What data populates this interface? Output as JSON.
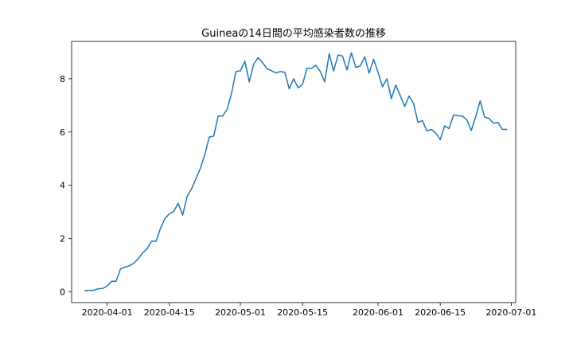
{
  "chart_data": {
    "type": "line",
    "title": "Guineaの14日間の平均感染者数の推移",
    "xlabel": "",
    "ylabel": "",
    "grid": false,
    "legend": "none",
    "line_color": "#1f77b4",
    "xlim": [
      "2020-03-24",
      "2020-07-02"
    ],
    "ylim": [
      -0.4,
      9.4
    ],
    "x_ticks": [
      "2020-04-01",
      "2020-04-15",
      "2020-05-01",
      "2020-05-15",
      "2020-06-01",
      "2020-06-15",
      "2020-07-01"
    ],
    "y_ticks": [
      0,
      2,
      4,
      6,
      8
    ],
    "series": [
      {
        "x": [
          "2020-03-27",
          "2020-03-28",
          "2020-03-29",
          "2020-03-30",
          "2020-03-31",
          "2020-04-01",
          "2020-04-02",
          "2020-04-03",
          "2020-04-04",
          "2020-04-05",
          "2020-04-06",
          "2020-04-07",
          "2020-04-08",
          "2020-04-09",
          "2020-04-10",
          "2020-04-11",
          "2020-04-12",
          "2020-04-13",
          "2020-04-14",
          "2020-04-15",
          "2020-04-16",
          "2020-04-17",
          "2020-04-18",
          "2020-04-19",
          "2020-04-20",
          "2020-04-21",
          "2020-04-22",
          "2020-04-23",
          "2020-04-24",
          "2020-04-25",
          "2020-04-26",
          "2020-04-27",
          "2020-04-28",
          "2020-04-29",
          "2020-04-30",
          "2020-05-01",
          "2020-05-02",
          "2020-05-03",
          "2020-05-04",
          "2020-05-05",
          "2020-05-06",
          "2020-05-07",
          "2020-05-08",
          "2020-05-09",
          "2020-05-10",
          "2020-05-11",
          "2020-05-12",
          "2020-05-13",
          "2020-05-14",
          "2020-05-15",
          "2020-05-16",
          "2020-05-17",
          "2020-05-18",
          "2020-05-19",
          "2020-05-20",
          "2020-05-21",
          "2020-05-22",
          "2020-05-23",
          "2020-05-24",
          "2020-05-25",
          "2020-05-26",
          "2020-05-27",
          "2020-05-28",
          "2020-05-29",
          "2020-05-30",
          "2020-05-31",
          "2020-06-01",
          "2020-06-02",
          "2020-06-03",
          "2020-06-04",
          "2020-06-05",
          "2020-06-06",
          "2020-06-07",
          "2020-06-08",
          "2020-06-09",
          "2020-06-10",
          "2020-06-11",
          "2020-06-12",
          "2020-06-13",
          "2020-06-14",
          "2020-06-15",
          "2020-06-16",
          "2020-06-17",
          "2020-06-18",
          "2020-06-19",
          "2020-06-20",
          "2020-06-21",
          "2020-06-22",
          "2020-06-23",
          "2020-06-24",
          "2020-06-25",
          "2020-06-26",
          "2020-06-27",
          "2020-06-28",
          "2020-06-29",
          "2020-06-30"
        ],
        "values": [
          0.05,
          0.06,
          0.06,
          0.12,
          0.13,
          0.22,
          0.4,
          0.4,
          0.86,
          0.93,
          0.98,
          1.08,
          1.24,
          1.47,
          1.62,
          1.9,
          1.9,
          2.38,
          2.75,
          2.93,
          3.02,
          3.33,
          2.88,
          3.58,
          3.86,
          4.25,
          4.64,
          5.16,
          5.81,
          5.85,
          6.6,
          6.6,
          6.84,
          7.44,
          8.27,
          8.3,
          8.66,
          7.88,
          8.55,
          8.79,
          8.6,
          8.38,
          8.3,
          8.22,
          8.27,
          8.24,
          7.62,
          8.0,
          7.66,
          7.79,
          8.39,
          8.39,
          8.5,
          8.27,
          7.88,
          8.94,
          8.29,
          8.89,
          8.85,
          8.33,
          8.97,
          8.42,
          8.48,
          8.82,
          8.21,
          8.73,
          8.24,
          7.7,
          8.0,
          7.25,
          7.76,
          7.37,
          6.96,
          7.35,
          7.07,
          6.36,
          6.43,
          6.04,
          6.1,
          5.96,
          5.71,
          6.23,
          6.13,
          6.64,
          6.61,
          6.6,
          6.46,
          6.06,
          6.58,
          7.17,
          6.56,
          6.51,
          6.33,
          6.36,
          6.1,
          6.1
        ]
      }
    ]
  }
}
